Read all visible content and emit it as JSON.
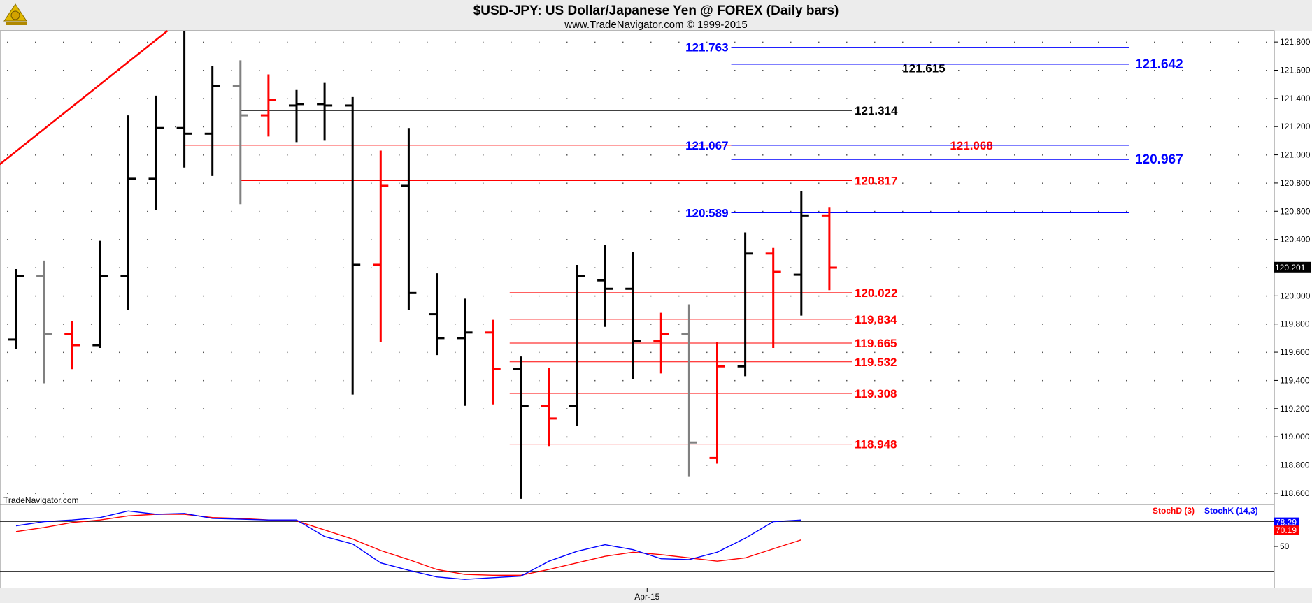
{
  "colors": {
    "up": "#000000",
    "down": "#ff0000",
    "neutral": "#808080",
    "blue": "#0000ff",
    "red": "#ff0000",
    "black": "#000000",
    "grid": "#000000"
  },
  "icons": {
    "logo": "sextant-logo-icon"
  },
  "chart_data": {
    "type": "ohlc",
    "title": "$USD-JPY:  US Dollar/Japanese Yen @ FOREX  (Daily bars)",
    "subtitle": "www.TradeNavigator.com © 1999-2015",
    "watermark": "TradeNavigator.com",
    "ylim": [
      118.52,
      121.88
    ],
    "yticks": [
      "121.800",
      "121.600",
      "121.400",
      "121.200",
      "121.000",
      "120.800",
      "120.600",
      "120.400",
      "120.200",
      "120.000",
      "119.800",
      "119.600",
      "119.400",
      "119.200",
      "119.000",
      "118.800",
      "118.600"
    ],
    "last_price": "120.201",
    "x_labels": [
      "Apr-15"
    ],
    "x_label_index": 23,
    "bars": [
      {
        "o": 119.69,
        "h": 120.19,
        "l": 119.62,
        "c": 120.14,
        "color": "up"
      },
      {
        "o": 120.14,
        "h": 120.25,
        "l": 119.38,
        "c": 119.73,
        "color": "neutral"
      },
      {
        "o": 119.73,
        "h": 119.82,
        "l": 119.48,
        "c": 119.65,
        "color": "down"
      },
      {
        "o": 119.65,
        "h": 120.39,
        "l": 119.63,
        "c": 120.14,
        "color": "up"
      },
      {
        "o": 120.14,
        "h": 121.28,
        "l": 119.9,
        "c": 120.83,
        "color": "up"
      },
      {
        "o": 120.83,
        "h": 121.42,
        "l": 120.61,
        "c": 121.19,
        "color": "up"
      },
      {
        "o": 121.19,
        "h": 121.88,
        "l": 120.91,
        "c": 121.15,
        "color": "up"
      },
      {
        "o": 121.15,
        "h": 121.63,
        "l": 120.85,
        "c": 121.49,
        "color": "up"
      },
      {
        "o": 121.49,
        "h": 121.67,
        "l": 120.65,
        "c": 121.28,
        "color": "neutral"
      },
      {
        "o": 121.28,
        "h": 121.57,
        "l": 121.13,
        "c": 121.39,
        "color": "down"
      },
      {
        "o": 121.35,
        "h": 121.46,
        "l": 121.09,
        "c": 121.36,
        "color": "up"
      },
      {
        "o": 121.36,
        "h": 121.51,
        "l": 121.1,
        "c": 121.35,
        "color": "up"
      },
      {
        "o": 121.35,
        "h": 121.41,
        "l": 119.3,
        "c": 120.22,
        "color": "up"
      },
      {
        "o": 120.22,
        "h": 121.03,
        "l": 119.67,
        "c": 120.78,
        "color": "down"
      },
      {
        "o": 120.78,
        "h": 121.19,
        "l": 119.9,
        "c": 120.02,
        "color": "up"
      },
      {
        "o": 119.87,
        "h": 120.16,
        "l": 119.58,
        "c": 119.7,
        "color": "up"
      },
      {
        "o": 119.7,
        "h": 119.98,
        "l": 119.22,
        "c": 119.74,
        "color": "up"
      },
      {
        "o": 119.74,
        "h": 119.83,
        "l": 119.23,
        "c": 119.48,
        "color": "down"
      },
      {
        "o": 119.48,
        "h": 119.57,
        "l": 118.56,
        "c": 119.22,
        "color": "up"
      },
      {
        "o": 119.22,
        "h": 119.49,
        "l": 118.93,
        "c": 119.13,
        "color": "down"
      },
      {
        "o": 119.22,
        "h": 120.22,
        "l": 119.08,
        "c": 120.14,
        "color": "up"
      },
      {
        "o": 120.11,
        "h": 120.36,
        "l": 119.78,
        "c": 120.05,
        "color": "up"
      },
      {
        "o": 120.05,
        "h": 120.31,
        "l": 119.41,
        "c": 119.68,
        "color": "up"
      },
      {
        "o": 119.68,
        "h": 119.88,
        "l": 119.45,
        "c": 119.73,
        "color": "down"
      },
      {
        "o": 119.73,
        "h": 119.94,
        "l": 118.72,
        "c": 118.96,
        "color": "neutral"
      },
      {
        "o": 118.85,
        "h": 119.67,
        "l": 118.81,
        "c": 119.5,
        "color": "down"
      },
      {
        "o": 119.5,
        "h": 120.45,
        "l": 119.43,
        "c": 120.3,
        "color": "up"
      },
      {
        "o": 120.3,
        "h": 120.34,
        "l": 119.63,
        "c": 120.17,
        "color": "down"
      },
      {
        "o": 120.15,
        "h": 120.74,
        "l": 119.86,
        "c": 120.57,
        "color": "up"
      },
      {
        "o": 120.57,
        "h": 120.63,
        "l": 120.04,
        "c": 120.2,
        "color": "down"
      }
    ],
    "trendline": {
      "from": [
        -0.6,
        120.93
      ],
      "to": [
        5.4,
        121.88
      ],
      "color": "red"
    },
    "levels": [
      {
        "value": 121.615,
        "label": "121.615",
        "color": "black",
        "from": 7,
        "to": 31.5,
        "label_side": "right",
        "label_idx": 31.6
      },
      {
        "value": 121.314,
        "label": "121.314",
        "color": "black",
        "from": 8,
        "to": 29.8,
        "label_side": "right",
        "label_idx": 29.9
      },
      {
        "value": 121.068,
        "label": "121.068",
        "color": "red",
        "from": 6,
        "to": 33,
        "label_side": "right",
        "label_idx": 33.3
      },
      {
        "value": 120.817,
        "label": "120.817",
        "color": "red",
        "from": 8,
        "to": 29.8,
        "label_side": "right",
        "label_idx": 29.9
      },
      {
        "value": 120.022,
        "label": "120.022",
        "color": "red",
        "from": 17.6,
        "to": 29.8,
        "label_side": "right",
        "label_idx": 29.9
      },
      {
        "value": 119.834,
        "label": "119.834",
        "color": "red",
        "from": 17.6,
        "to": 29.8,
        "label_side": "right",
        "label_idx": 29.9
      },
      {
        "value": 119.665,
        "label": "119.665",
        "color": "red",
        "from": 17.6,
        "to": 29.8,
        "label_side": "right",
        "label_idx": 29.9
      },
      {
        "value": 119.532,
        "label": "119.532",
        "color": "red",
        "from": 17.6,
        "to": 29.8,
        "label_side": "right",
        "label_idx": 29.9
      },
      {
        "value": 119.308,
        "label": "119.308",
        "color": "red",
        "from": 17.6,
        "to": 29.8,
        "label_side": "right",
        "label_idx": 29.9
      },
      {
        "value": 118.948,
        "label": "118.948",
        "color": "red",
        "from": 17.6,
        "to": 29.8,
        "label_side": "right",
        "label_idx": 29.9
      },
      {
        "value": 121.763,
        "label": "121.763",
        "color": "blue",
        "from": 25.5,
        "to": 39.7,
        "label_side": "left",
        "label_idx": 25.4
      },
      {
        "value": 121.642,
        "label": "121.642",
        "color": "blue",
        "from": 25.5,
        "to": 39.7,
        "label_side": "right",
        "label_idx": 39.9,
        "big": true
      },
      {
        "value": 121.067,
        "label": "121.067",
        "color": "blue",
        "from": 25.5,
        "to": 39.7,
        "label_side": "left",
        "label_idx": 25.4
      },
      {
        "value": 120.967,
        "label": "120.967",
        "color": "blue",
        "from": 25.5,
        "to": 39.7,
        "label_side": "right",
        "label_idx": 39.9,
        "big": true
      },
      {
        "value": 120.589,
        "label": "120.589",
        "color": "blue",
        "from": 25.5,
        "to": 39.7,
        "label_side": "left",
        "label_idx": 25.4
      }
    ],
    "oscillator": {
      "ylim": [
        0,
        100
      ],
      "ytick": "50",
      "ytick_value": 50,
      "ref_lines": [
        80,
        20
      ],
      "legend": [
        {
          "name": "StochD (3)",
          "color": "red"
        },
        {
          "name": "StochK (14,3)",
          "color": "blue"
        }
      ],
      "stochD": [
        68,
        73,
        79,
        82,
        87,
        89,
        89,
        85,
        84,
        82,
        81,
        70,
        59,
        45,
        34,
        22,
        16,
        15,
        15,
        22,
        30,
        38,
        43,
        40,
        36,
        32,
        36,
        47,
        58
      ],
      "stochK": [
        75,
        80,
        82,
        85,
        93,
        89,
        90,
        84,
        83,
        82,
        82,
        62,
        53,
        30,
        21,
        13,
        10,
        12,
        14,
        32,
        44,
        52,
        46,
        35,
        34,
        43,
        60,
        80,
        82
      ],
      "osc_start": 0,
      "last_D": "70.19",
      "last_K": "78.29"
    }
  }
}
